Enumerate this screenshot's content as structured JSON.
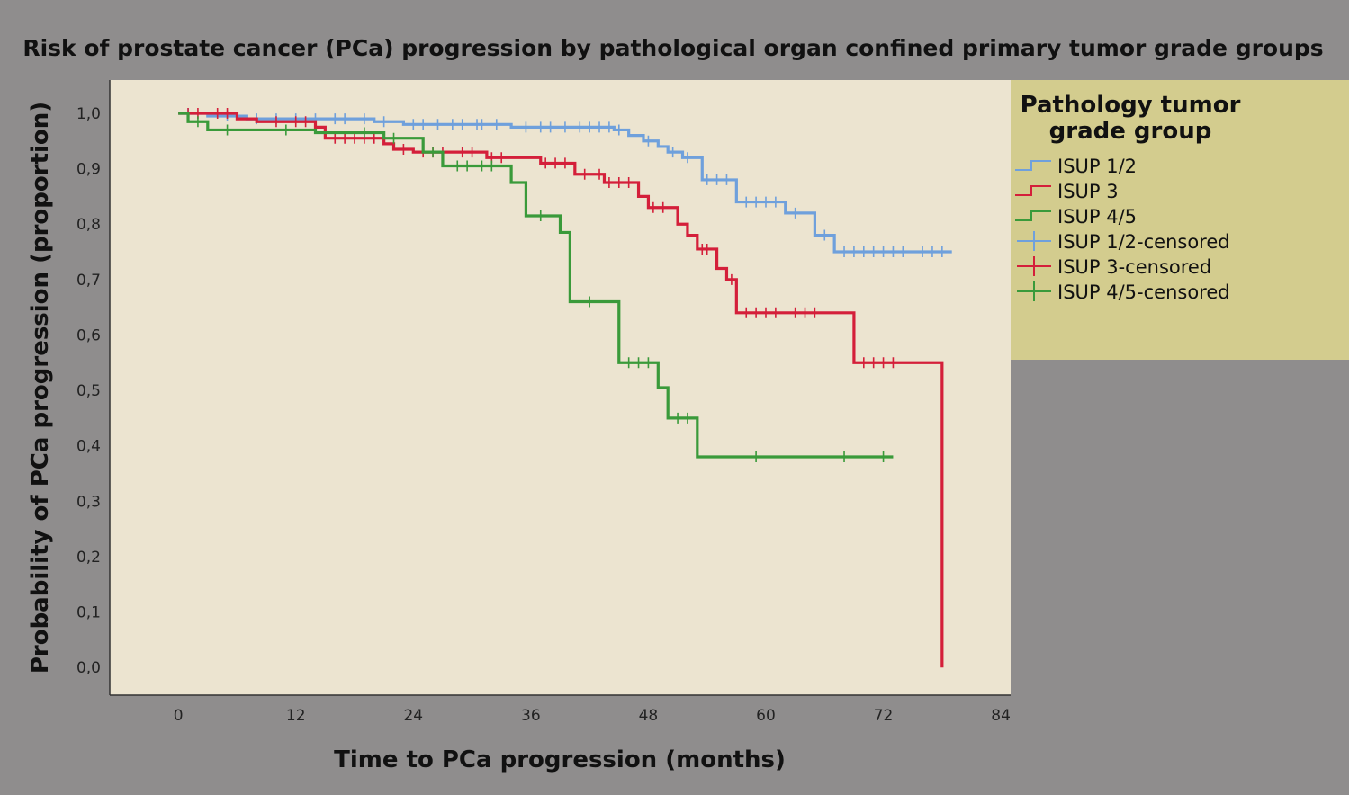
{
  "chart_data": {
    "type": "line",
    "subtype": "kaplan-meier-step",
    "title": "Risk of prostate cancer (PCa) progression by pathological organ confined primary tumor grade groups",
    "xlabel": "Time to PCa progression (months)",
    "ylabel": "Probability of PCa progression (proportion)",
    "xlim": [
      -7,
      85
    ],
    "ylim": [
      -0.05,
      1.06
    ],
    "xticks": [
      {
        "value": 0,
        "label": "0"
      },
      {
        "value": 12,
        "label": "12"
      },
      {
        "value": 24,
        "label": "24"
      },
      {
        "value": 36,
        "label": "36"
      },
      {
        "value": 48,
        "label": "48"
      },
      {
        "value": 60,
        "label": "60"
      },
      {
        "value": 72,
        "label": "72"
      },
      {
        "value": 84,
        "label": "84"
      }
    ],
    "yticks": [
      {
        "value": 1.0,
        "label": "1,0"
      },
      {
        "value": 0.9,
        "label": "0,9"
      },
      {
        "value": 0.8,
        "label": "0,8"
      },
      {
        "value": 0.7,
        "label": "0,7"
      },
      {
        "value": 0.6,
        "label": "0,6"
      },
      {
        "value": 0.5,
        "label": "0,5"
      },
      {
        "value": 0.4,
        "label": "0,4"
      },
      {
        "value": 0.3,
        "label": "0,3"
      },
      {
        "value": 0.2,
        "label": "0,2"
      },
      {
        "value": 0.1,
        "label": "0,1"
      },
      {
        "value": 0.0,
        "label": "0,0"
      }
    ],
    "grid": false,
    "legend": {
      "title": "Pathology tumor grade group",
      "title_lines": [
        "Pathology tumor",
        "grade group"
      ],
      "placement": "right",
      "entries": [
        {
          "label": "ISUP 1/2",
          "kind": "line",
          "color": "#6fa0dc"
        },
        {
          "label": "ISUP 3",
          "kind": "line",
          "color": "#d41f3a"
        },
        {
          "label": "ISUP 4/5",
          "kind": "line",
          "color": "#3a9a3a"
        },
        {
          "label": "ISUP 1/2-censored",
          "kind": "cross",
          "color": "#6fa0dc"
        },
        {
          "label": "ISUP 3-censored",
          "kind": "cross",
          "color": "#d41f3a"
        },
        {
          "label": "ISUP 4/5-censored",
          "kind": "cross",
          "color": "#3a9a3a"
        }
      ]
    },
    "series": [
      {
        "name": "ISUP 1/2",
        "color": "#6fa0dc",
        "steps": [
          [
            0,
            1.0
          ],
          [
            3,
            0.995
          ],
          [
            7,
            0.99
          ],
          [
            20,
            0.985
          ],
          [
            23,
            0.98
          ],
          [
            34,
            0.975
          ],
          [
            44.5,
            0.97
          ],
          [
            46,
            0.96
          ],
          [
            47.5,
            0.95
          ],
          [
            49,
            0.94
          ],
          [
            50,
            0.93
          ],
          [
            51.5,
            0.92
          ],
          [
            53.5,
            0.88
          ],
          [
            57,
            0.84
          ],
          [
            62,
            0.82
          ],
          [
            65,
            0.78
          ],
          [
            67,
            0.75
          ],
          [
            79,
            0.75
          ]
        ],
        "censored": [
          [
            1,
            1.0
          ],
          [
            5,
            0.995
          ],
          [
            8,
            0.99
          ],
          [
            10,
            0.99
          ],
          [
            12,
            0.99
          ],
          [
            14,
            0.99
          ],
          [
            16,
            0.99
          ],
          [
            17,
            0.99
          ],
          [
            19,
            0.99
          ],
          [
            21,
            0.985
          ],
          [
            24,
            0.98
          ],
          [
            25,
            0.98
          ],
          [
            26.5,
            0.98
          ],
          [
            28,
            0.98
          ],
          [
            29,
            0.98
          ],
          [
            30.5,
            0.98
          ],
          [
            31,
            0.98
          ],
          [
            32.5,
            0.98
          ],
          [
            35.5,
            0.975
          ],
          [
            37,
            0.975
          ],
          [
            38,
            0.975
          ],
          [
            39.5,
            0.975
          ],
          [
            41,
            0.975
          ],
          [
            42,
            0.975
          ],
          [
            43,
            0.975
          ],
          [
            44,
            0.975
          ],
          [
            45,
            0.97
          ],
          [
            48,
            0.95
          ],
          [
            50.5,
            0.93
          ],
          [
            52,
            0.92
          ],
          [
            54,
            0.88
          ],
          [
            55,
            0.88
          ],
          [
            56,
            0.88
          ],
          [
            58,
            0.84
          ],
          [
            59,
            0.84
          ],
          [
            60,
            0.84
          ],
          [
            61,
            0.84
          ],
          [
            63,
            0.82
          ],
          [
            66,
            0.78
          ],
          [
            68,
            0.75
          ],
          [
            69,
            0.75
          ],
          [
            70,
            0.75
          ],
          [
            71,
            0.75
          ],
          [
            72,
            0.75
          ],
          [
            73,
            0.75
          ],
          [
            74,
            0.75
          ],
          [
            76,
            0.75
          ],
          [
            77,
            0.75
          ],
          [
            78,
            0.75
          ]
        ]
      },
      {
        "name": "ISUP 3",
        "color": "#d41f3a",
        "steps": [
          [
            0,
            1.0
          ],
          [
            6,
            0.99
          ],
          [
            8,
            0.985
          ],
          [
            14,
            0.975
          ],
          [
            15,
            0.955
          ],
          [
            21,
            0.945
          ],
          [
            22,
            0.935
          ],
          [
            24,
            0.93
          ],
          [
            31.5,
            0.92
          ],
          [
            37,
            0.91
          ],
          [
            40.5,
            0.89
          ],
          [
            43.5,
            0.875
          ],
          [
            47,
            0.85
          ],
          [
            48,
            0.83
          ],
          [
            51,
            0.8
          ],
          [
            52,
            0.78
          ],
          [
            53,
            0.755
          ],
          [
            55,
            0.72
          ],
          [
            56,
            0.7
          ],
          [
            57,
            0.64
          ],
          [
            69,
            0.55
          ],
          [
            78,
            0.55
          ],
          [
            78,
            0.0
          ]
        ],
        "censored": [
          [
            1,
            1.0
          ],
          [
            2,
            1.0
          ],
          [
            4,
            1.0
          ],
          [
            5,
            1.0
          ],
          [
            10,
            0.985
          ],
          [
            12,
            0.985
          ],
          [
            13,
            0.985
          ],
          [
            16,
            0.955
          ],
          [
            17,
            0.955
          ],
          [
            18,
            0.955
          ],
          [
            19,
            0.955
          ],
          [
            20,
            0.955
          ],
          [
            23,
            0.935
          ],
          [
            25,
            0.93
          ],
          [
            26,
            0.93
          ],
          [
            27,
            0.93
          ],
          [
            29,
            0.93
          ],
          [
            30,
            0.93
          ],
          [
            32,
            0.92
          ],
          [
            33,
            0.92
          ],
          [
            37.5,
            0.91
          ],
          [
            38.5,
            0.91
          ],
          [
            39.5,
            0.91
          ],
          [
            41.5,
            0.89
          ],
          [
            43,
            0.89
          ],
          [
            44,
            0.875
          ],
          [
            45,
            0.875
          ],
          [
            46,
            0.875
          ],
          [
            48.5,
            0.83
          ],
          [
            49.5,
            0.83
          ],
          [
            53.5,
            0.755
          ],
          [
            54,
            0.755
          ],
          [
            56.5,
            0.7
          ],
          [
            58,
            0.64
          ],
          [
            59,
            0.64
          ],
          [
            60,
            0.64
          ],
          [
            61,
            0.64
          ],
          [
            63,
            0.64
          ],
          [
            64,
            0.64
          ],
          [
            65,
            0.64
          ],
          [
            70,
            0.55
          ],
          [
            71,
            0.55
          ],
          [
            72,
            0.55
          ],
          [
            73,
            0.55
          ]
        ]
      },
      {
        "name": "ISUP 4/5",
        "color": "#3a9a3a",
        "steps": [
          [
            0,
            1.0
          ],
          [
            1,
            0.985
          ],
          [
            3,
            0.97
          ],
          [
            14,
            0.965
          ],
          [
            21,
            0.955
          ],
          [
            25,
            0.93
          ],
          [
            27,
            0.905
          ],
          [
            34,
            0.875
          ],
          [
            35.5,
            0.815
          ],
          [
            39,
            0.785
          ],
          [
            40,
            0.66
          ],
          [
            45,
            0.55
          ],
          [
            49,
            0.505
          ],
          [
            50,
            0.45
          ],
          [
            53,
            0.38
          ],
          [
            73,
            0.38
          ]
        ],
        "censored": [
          [
            2,
            0.985
          ],
          [
            5,
            0.97
          ],
          [
            11,
            0.97
          ],
          [
            19,
            0.965
          ],
          [
            22,
            0.955
          ],
          [
            26,
            0.93
          ],
          [
            28.5,
            0.905
          ],
          [
            29.5,
            0.905
          ],
          [
            31,
            0.905
          ],
          [
            32,
            0.905
          ],
          [
            37,
            0.815
          ],
          [
            42,
            0.66
          ],
          [
            46,
            0.55
          ],
          [
            47,
            0.55
          ],
          [
            48,
            0.55
          ],
          [
            51,
            0.45
          ],
          [
            52,
            0.45
          ],
          [
            59,
            0.38
          ],
          [
            68,
            0.38
          ],
          [
            72,
            0.38
          ]
        ]
      }
    ]
  }
}
